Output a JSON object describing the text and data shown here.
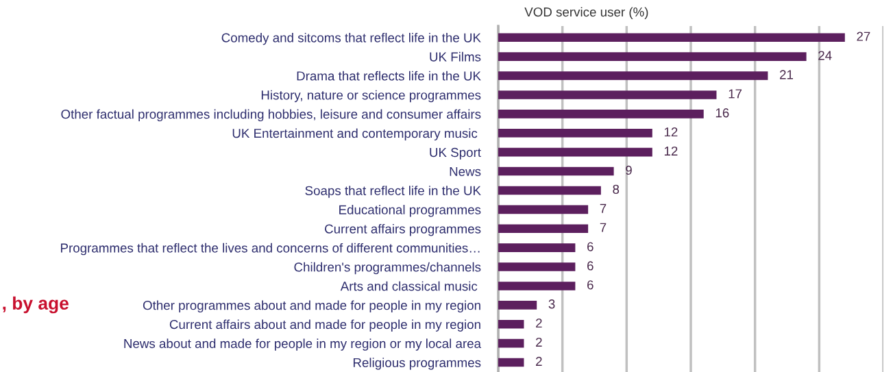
{
  "chart_data": {
    "type": "bar",
    "orientation": "horizontal",
    "title": "VOD service user (%)",
    "annotations": [
      ", by age"
    ],
    "categories": [
      "Comedy and sitcoms that reflect life in the UK",
      "UK Films",
      "Drama that reflects life in the UK",
      "History, nature or science programmes",
      "Other factual programmes including hobbies, leisure and consumer affairs",
      "UK Entertainment and contemporary music ",
      "UK Sport",
      "News",
      "Soaps that reflect life in the UK",
      "Educational programmes",
      "Current affairs programmes",
      "Programmes that reflect the lives and concerns of different communities…",
      "Children's programmes/channels",
      "Arts and classical music ",
      "Other programmes about and made for people in my region",
      "Current affairs about and made for people in my region",
      "News about and made for people in my region or my local area",
      "Religious programmes"
    ],
    "values": [
      27,
      24,
      21,
      17,
      16,
      12,
      12,
      9,
      8,
      7,
      7,
      6,
      6,
      6,
      3,
      2,
      2,
      2
    ],
    "color": "#5c1f5e",
    "xlim": [
      0,
      30
    ],
    "xticks": [
      {
        "value": 0,
        "label": null
      },
      {
        "value": 5,
        "label": null
      },
      {
        "value": 10,
        "label": null
      },
      {
        "value": 15,
        "label": null
      },
      {
        "value": 20,
        "label": null
      },
      {
        "value": 25,
        "label": null
      },
      {
        "value": 30,
        "label": null
      }
    ],
    "grid": "x",
    "tick_labels": "y",
    "data_labels": true
  }
}
